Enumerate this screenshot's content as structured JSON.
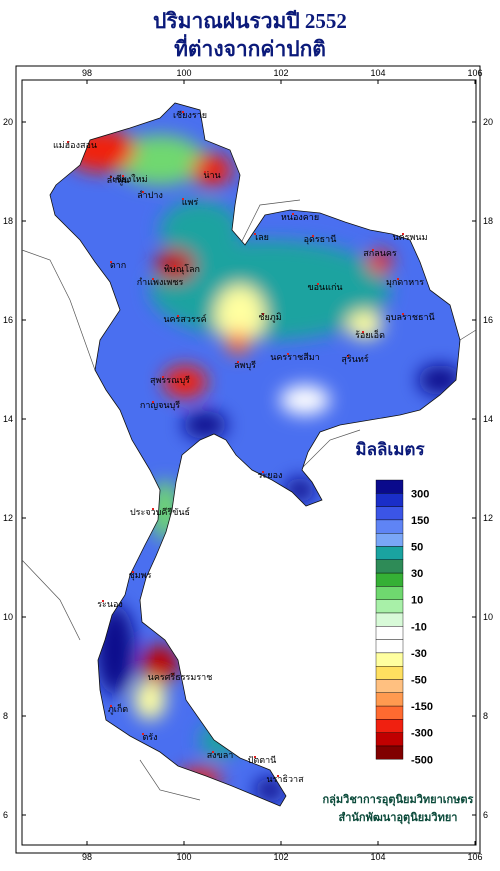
{
  "title_lines": [
    "ปริมาณฝนรวมปี 2552",
    "ที่ต่างจากค่าปกติ"
  ],
  "map": {
    "lon_ticks": [
      98,
      100,
      102,
      104,
      106
    ],
    "lat_ticks": [
      20,
      18,
      16,
      14,
      12,
      10,
      8,
      6
    ],
    "provinces": [
      "เชียงราย",
      "แม่ฮ่องสอน",
      "เชียงใหม่",
      "น่าน",
      "ลำพูน",
      "ลำปาง",
      "แพร่",
      "ตาก",
      "พิษณุโลก",
      "กำแพงเพชร",
      "เลย",
      "หนองคาย",
      "อุดรธานี",
      "นครพนม",
      "สกลนคร",
      "มุกดาหาร",
      "ขอนแก่น",
      "นครสวรรค์",
      "ชัยภูมิ",
      "ร้อยเอ็ด",
      "อุบลราชธานี",
      "ลพบุรี",
      "สุพรรณบุรี",
      "กาญจนบุรี",
      "นครราชสีมา",
      "สุรินทร์",
      "ระยอง",
      "ประจวบคีรีขันธ์",
      "ชุมพร",
      "ระนอง",
      "นครศรีธรรมราช",
      "ภูเก็ต",
      "ตรัง",
      "สงขลา",
      "ปัตตานี",
      "นราธิวาส"
    ]
  },
  "legend": {
    "title": "มิลลิเมตร",
    "labels": [
      300,
      150,
      50,
      30,
      10,
      -10,
      -30,
      -50,
      -150,
      -300,
      -500
    ],
    "colors": [
      "#0a0a8c",
      "#1a2ec8",
      "#3b55e6",
      "#5f84f5",
      "#7aa6f7",
      "#1aa3a0",
      "#2e8b57",
      "#35b035",
      "#6fd86f",
      "#a8f0a8",
      "#d8fad8",
      "#ffffff",
      "#ffffff",
      "#ffffa0",
      "#ffe060",
      "#ffc080",
      "#ff9a50",
      "#ff6a30",
      "#f02010",
      "#c00000",
      "#800000"
    ]
  },
  "credits": [
    "กลุ่มวิชาการอุตุนิยมวิทยาเกษตร",
    "สำนักพัฒนาอุตุนิยมวิทยา"
  ]
}
